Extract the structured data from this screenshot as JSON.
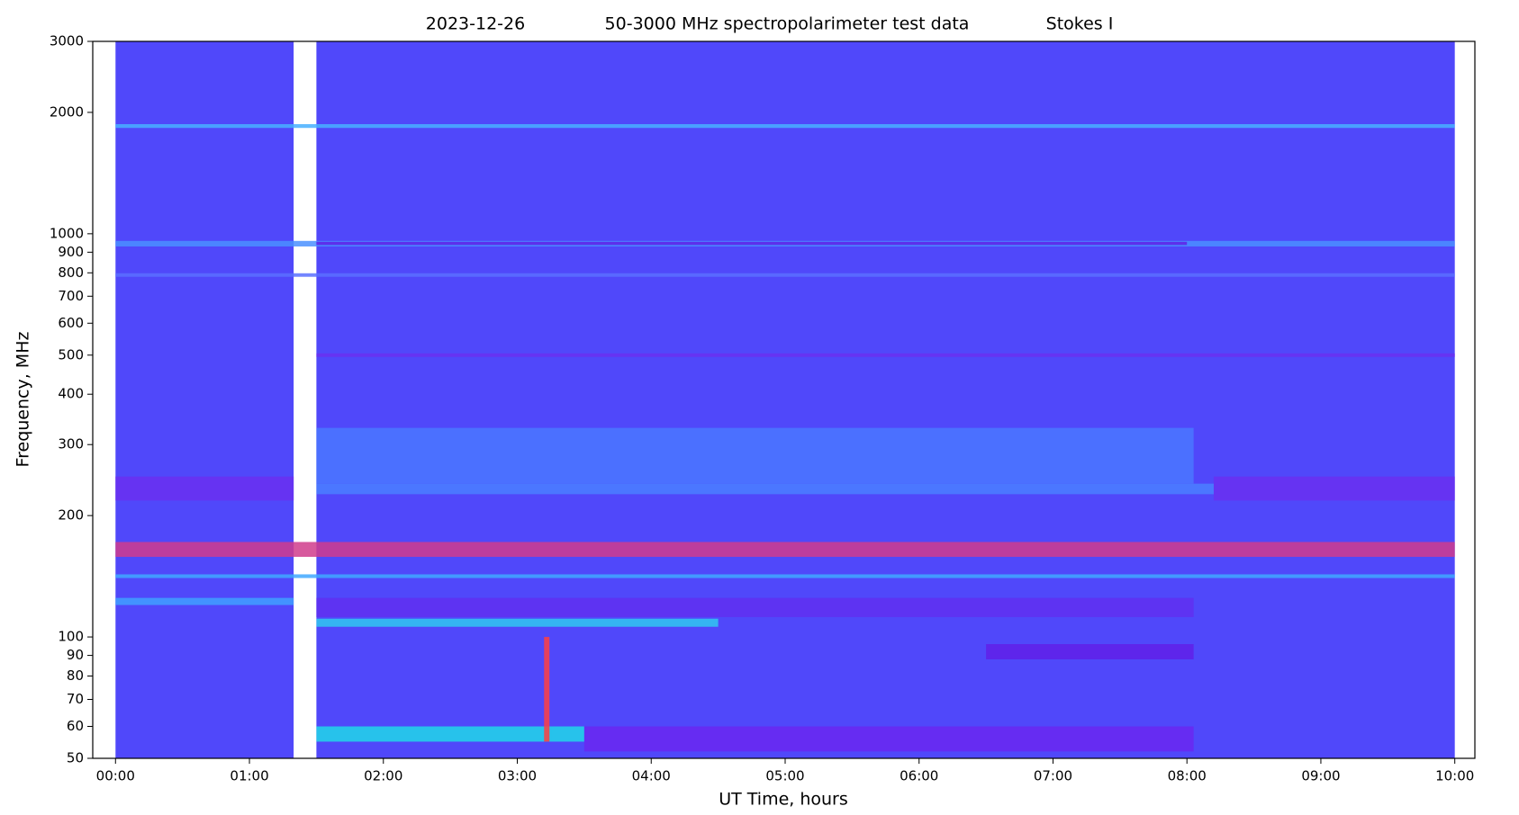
{
  "chart_data": {
    "type": "spectrogram",
    "title_parts": [
      "2023-12-26",
      "50-3000 MHz spectropolarimeter test data",
      "Stokes I"
    ],
    "x_label": "UT Time, hours",
    "y_label": "Frequency, MHz",
    "y_scale": "log",
    "xlim": [
      -0.17,
      10.15
    ],
    "ylim": [
      50,
      3000
    ],
    "xticks": [
      {
        "value": 0,
        "label": "00:00"
      },
      {
        "value": 1,
        "label": "01:00"
      },
      {
        "value": 2,
        "label": "02:00"
      },
      {
        "value": 3,
        "label": "03:00"
      },
      {
        "value": 4,
        "label": "04:00"
      },
      {
        "value": 5,
        "label": "05:00"
      },
      {
        "value": 6,
        "label": "06:00"
      },
      {
        "value": 7,
        "label": "07:00"
      },
      {
        "value": 8,
        "label": "08:00"
      },
      {
        "value": 9,
        "label": "09:00"
      },
      {
        "value": 10,
        "label": "10:00"
      }
    ],
    "yticks": [
      50,
      60,
      70,
      80,
      90,
      100,
      200,
      300,
      400,
      500,
      600,
      700,
      800,
      900,
      1000,
      2000,
      3000
    ],
    "background_color": "#5048fa",
    "segments": [
      {
        "t": [
          0,
          1.33
        ]
      },
      {
        "t": [
          1.5,
          10
        ]
      }
    ],
    "bands": [
      {
        "t": [
          1.5,
          8.05
        ],
        "f": [
          240,
          330
        ],
        "color": "#4a78ff"
      },
      {
        "t": [
          0,
          10
        ],
        "f": [
          1830,
          1870
        ],
        "color": "#48b0ff"
      },
      {
        "t": [
          0,
          10
        ],
        "f": [
          930,
          960
        ],
        "color": "#4a90ff"
      },
      {
        "t": [
          1.5,
          8
        ],
        "f": [
          938,
          955
        ],
        "color": "#6020e8"
      },
      {
        "t": [
          0,
          10
        ],
        "f": [
          782,
          798
        ],
        "color": "#5a70ff"
      },
      {
        "t": [
          1.5,
          10
        ],
        "f": [
          495,
          505
        ],
        "color": "#6a30f0"
      },
      {
        "t": [
          0,
          1.33
        ],
        "f": [
          218,
          250
        ],
        "color": "#6a30f0"
      },
      {
        "t": [
          8.2,
          10
        ],
        "f": [
          218,
          250
        ],
        "color": "#6a30f0"
      },
      {
        "t": [
          1.5,
          8.2
        ],
        "f": [
          226,
          240
        ],
        "color": "#4a80ff"
      },
      {
        "t": [
          0,
          10
        ],
        "f": [
          158,
          172
        ],
        "color": "#d03c8c"
      },
      {
        "t": [
          0,
          10
        ],
        "f": [
          140,
          143
        ],
        "color": "#40a8ff"
      },
      {
        "t": [
          1.5,
          8.05
        ],
        "f": [
          112,
          125
        ],
        "color": "#6030f0"
      },
      {
        "t": [
          0,
          1.33
        ],
        "f": [
          120,
          125
        ],
        "color": "#40a0ff"
      },
      {
        "t": [
          1.5,
          4.5
        ],
        "f": [
          106,
          111
        ],
        "color": "#30c8f0"
      },
      {
        "t": [
          6.5,
          8.05
        ],
        "f": [
          88,
          96
        ],
        "color": "#6020e8"
      },
      {
        "t": [
          1.5,
          3.5
        ],
        "f": [
          55,
          60
        ],
        "color": "#20d8e8"
      },
      {
        "t": [
          3.5,
          8.05
        ],
        "f": [
          52,
          60
        ],
        "color": "#6a28f0"
      },
      {
        "t": [
          3.2,
          3.24
        ],
        "f": [
          55,
          100
        ],
        "color": "#ff4040"
      }
    ]
  }
}
